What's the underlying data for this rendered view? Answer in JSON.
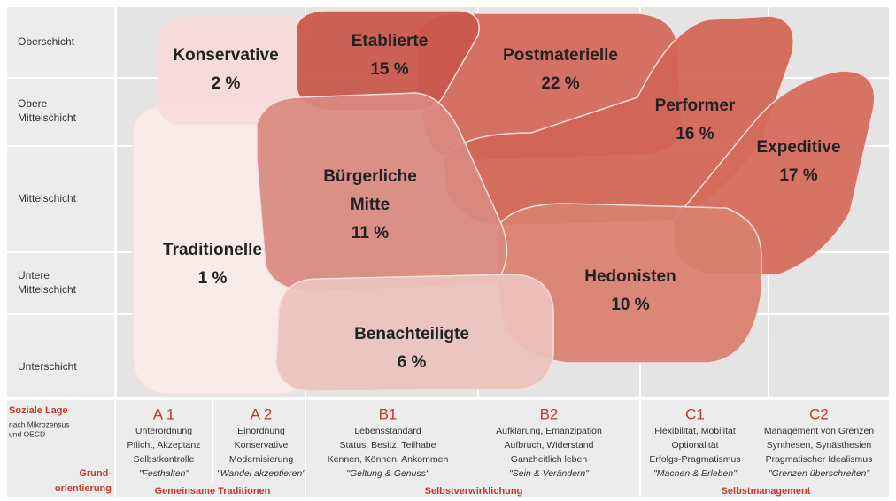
{
  "rows": [
    "Oberschicht",
    "Obere|Mittelschicht",
    "Mittelschicht",
    "Untere|Mittelschicht",
    "Unterschicht"
  ],
  "milieus": [
    {
      "lines": [
        "Traditionelle"
      ],
      "share": "1 %"
    },
    {
      "lines": [
        "Konservative"
      ],
      "share": "2 %"
    },
    {
      "lines": [
        "Postmaterielle"
      ],
      "share": "22 %"
    },
    {
      "lines": [
        "Performer"
      ],
      "share": "16 %"
    },
    {
      "lines": [
        "Expeditive"
      ],
      "share": "17 %"
    },
    {
      "lines": [
        "Etablierte"
      ],
      "share": "15 %"
    },
    {
      "lines": [
        "Hedonisten"
      ],
      "share": "10 %"
    },
    {
      "lines": [
        "Bürgerliche",
        "Mitte"
      ],
      "share": "11 %"
    },
    {
      "lines": [
        "Benachteiligte"
      ],
      "share": "6 %"
    }
  ],
  "legend": {
    "soziale_lage": "Soziale Lage",
    "note": [
      "nach Mikrozensus",
      "und OECD"
    ],
    "grund": [
      "Grund-",
      "orientierung"
    ]
  },
  "columns": [
    {
      "code": "A 1",
      "lines": [
        "Unterordnung",
        "Pflicht, Akzeptanz",
        "Selbstkontrolle",
        "\"Festhalten\""
      ]
    },
    {
      "code": "A 2",
      "lines": [
        "Einordnung",
        "Konservative",
        "Modernisierung",
        "\"Wandel akzeptieren\""
      ]
    },
    {
      "code": "B1",
      "lines": [
        "Lebensstandard",
        "Status, Besitz, Teilhabe",
        "Kennen, Können, Ankommen",
        "\"Geltung & Genuss\""
      ]
    },
    {
      "code": "B2",
      "lines": [
        "Aufklärung, Emanzipation",
        "Aufbruch, Widerstand",
        "Ganzheitlich leben",
        "\"Sein & Verändern\""
      ]
    },
    {
      "code": "C1",
      "lines": [
        "Flexibilität, Mobilität",
        "Optionalität",
        "Erfolgs-Pragmatismus",
        "\"Machen & Erleben\""
      ]
    },
    {
      "code": "C2",
      "lines": [
        "Management von Grenzen",
        "Synthesen, Synästhesien",
        "Pragmatischer Idealismus",
        "\"Grenzen überschreiten\""
      ]
    }
  ],
  "groups": [
    "Gemeinsame Traditionen",
    "Selbstverwirklichung",
    "Selbstmanagement"
  ]
}
